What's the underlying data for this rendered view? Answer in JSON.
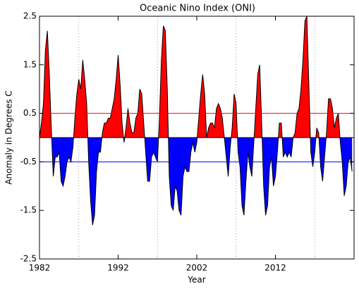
{
  "chart_data": {
    "type": "area",
    "title": "Oceanic Nino Index (ONI)",
    "x_label": "Year",
    "y_label": "Anomaly in Degrees C",
    "xlim": [
      1982,
      2022
    ],
    "ylim": [
      -2.5,
      2.5
    ],
    "xticks": [
      1982,
      1992,
      2002,
      2012
    ],
    "yticks": [
      -2.5,
      -1.5,
      -0.5,
      0.5,
      1.5,
      2.5
    ],
    "xgrid": [
      1987,
      1997,
      2007,
      2017
    ],
    "positive_color": "#ff0000",
    "negative_color": "#0000ff",
    "line_color": "#000000",
    "thresholds": [
      {
        "value": 0.5,
        "color": "#ff0000"
      },
      {
        "value": -0.5,
        "color": "#0000ff"
      }
    ],
    "x": [
      1982,
      1982.25,
      1982.5,
      1982.75,
      1983,
      1983.25,
      1983.5,
      1983.75,
      1984,
      1984.25,
      1984.5,
      1984.75,
      1985,
      1985.25,
      1985.5,
      1985.75,
      1986,
      1986.25,
      1986.5,
      1986.75,
      1987,
      1987.25,
      1987.5,
      1987.75,
      1988,
      1988.25,
      1988.5,
      1988.75,
      1989,
      1989.25,
      1989.5,
      1989.75,
      1990,
      1990.25,
      1990.5,
      1990.75,
      1991,
      1991.25,
      1991.5,
      1991.75,
      1992,
      1992.25,
      1992.5,
      1992.75,
      1993,
      1993.25,
      1993.5,
      1993.75,
      1994,
      1994.25,
      1994.5,
      1994.75,
      1995,
      1995.25,
      1995.5,
      1995.75,
      1996,
      1996.25,
      1996.5,
      1996.75,
      1997,
      1997.25,
      1997.5,
      1997.75,
      1998,
      1998.25,
      1998.5,
      1998.75,
      1999,
      1999.25,
      1999.5,
      1999.75,
      2000,
      2000.25,
      2000.5,
      2000.75,
      2001,
      2001.25,
      2001.5,
      2001.75,
      2002,
      2002.25,
      2002.5,
      2002.75,
      2003,
      2003.25,
      2003.5,
      2003.75,
      2004,
      2004.25,
      2004.5,
      2004.75,
      2005,
      2005.25,
      2005.5,
      2005.75,
      2006,
      2006.25,
      2006.5,
      2006.75,
      2007,
      2007.25,
      2007.5,
      2007.75,
      2008,
      2008.25,
      2008.5,
      2008.75,
      2009,
      2009.25,
      2009.5,
      2009.75,
      2010,
      2010.25,
      2010.5,
      2010.75,
      2011,
      2011.25,
      2011.5,
      2011.75,
      2012,
      2012.25,
      2012.5,
      2012.75,
      2013,
      2013.25,
      2013.5,
      2013.75,
      2014,
      2014.25,
      2014.5,
      2014.75,
      2015,
      2015.25,
      2015.5,
      2015.75,
      2016,
      2016.25,
      2016.5,
      2016.75,
      2017,
      2017.25,
      2017.5,
      2017.75,
      2018,
      2018.25,
      2018.5,
      2018.75,
      2019,
      2019.25,
      2019.5,
      2019.75,
      2020,
      2020.25,
      2020.5,
      2020.75,
      2021,
      2021.25,
      2021.5,
      2021.75
    ],
    "values": [
      0.0,
      0.3,
      0.7,
      1.8,
      2.2,
      1.3,
      0.2,
      -0.8,
      -0.4,
      -0.4,
      -0.3,
      -0.9,
      -1.0,
      -0.8,
      -0.5,
      -0.4,
      -0.5,
      -0.2,
      0.4,
      0.9,
      1.2,
      1.0,
      1.6,
      1.2,
      0.7,
      -0.5,
      -1.3,
      -1.8,
      -1.6,
      -0.7,
      -0.3,
      -0.3,
      0.1,
      0.3,
      0.3,
      0.4,
      0.4,
      0.6,
      0.8,
      1.2,
      1.7,
      1.1,
      0.3,
      -0.1,
      0.2,
      0.6,
      0.3,
      0.1,
      0.1,
      0.4,
      0.5,
      1.0,
      0.9,
      0.3,
      -0.3,
      -0.9,
      -0.9,
      -0.4,
      -0.3,
      -0.4,
      -0.5,
      0.4,
      1.6,
      2.3,
      2.2,
      1.0,
      -0.8,
      -1.4,
      -1.5,
      -1.0,
      -1.1,
      -1.5,
      -1.6,
      -0.8,
      -0.6,
      -0.7,
      -0.7,
      -0.3,
      -0.1,
      -0.3,
      -0.1,
      0.4,
      0.9,
      1.3,
      0.9,
      0.0,
      0.2,
      0.3,
      0.3,
      0.2,
      0.6,
      0.7,
      0.6,
      0.4,
      0.0,
      -0.4,
      -0.8,
      -0.2,
      0.2,
      0.9,
      0.7,
      -0.3,
      -0.6,
      -1.4,
      -1.6,
      -0.9,
      -0.3,
      -0.6,
      -0.8,
      -0.1,
      0.6,
      1.3,
      1.5,
      0.3,
      -1.0,
      -1.6,
      -1.4,
      -0.6,
      -0.4,
      -1.0,
      -0.8,
      -0.3,
      0.3,
      0.3,
      -0.4,
      -0.3,
      -0.4,
      -0.3,
      -0.4,
      0.0,
      0.1,
      0.5,
      0.6,
      1.0,
      1.6,
      2.4,
      2.5,
      1.1,
      -0.3,
      -0.6,
      -0.3,
      0.2,
      0.1,
      -0.6,
      -0.9,
      -0.4,
      0.1,
      0.8,
      0.8,
      0.6,
      0.2,
      0.4,
      0.5,
      -0.1,
      -0.5,
      -1.2,
      -1.0,
      -0.5,
      -0.4,
      -0.7
    ]
  }
}
